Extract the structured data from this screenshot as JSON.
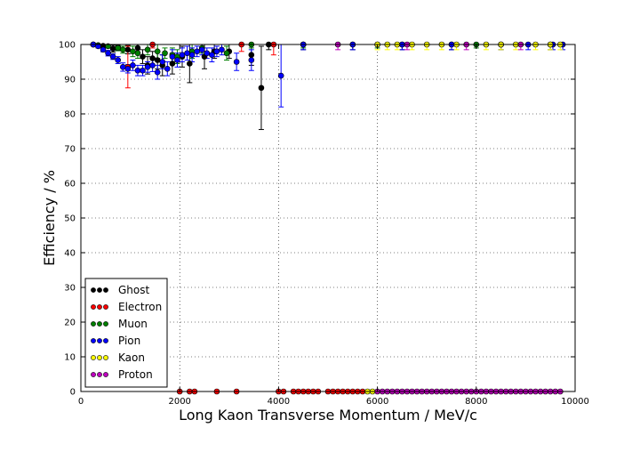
{
  "chart_data": {
    "type": "scatter",
    "title": "",
    "xlabel": "Long Kaon Transverse Momentum / MeV/c",
    "ylabel": "Efficiency / %",
    "xlim": [
      0,
      10000
    ],
    "ylim": [
      0,
      100
    ],
    "xticks": [
      0,
      2000,
      4000,
      6000,
      8000,
      10000
    ],
    "yticks": [
      0,
      10,
      20,
      30,
      40,
      50,
      60,
      70,
      80,
      90,
      100
    ],
    "grid": true,
    "error_bars": true,
    "legend_position": "lower-left",
    "series": [
      {
        "name": "Ghost",
        "color": "#000000",
        "points": [
          {
            "x": 250,
            "y": 100,
            "err": 0.3
          },
          {
            "x": 450,
            "y": 99.6,
            "err": 0.5
          },
          {
            "x": 650,
            "y": 98.8,
            "err": 1.0
          },
          {
            "x": 750,
            "y": 99.2,
            "err": 0.9
          },
          {
            "x": 950,
            "y": 98.5,
            "err": 1.2
          },
          {
            "x": 1150,
            "y": 99.0,
            "err": 1.2
          },
          {
            "x": 1250,
            "y": 96.5,
            "err": 2.0
          },
          {
            "x": 1350,
            "y": 94.0,
            "err": 2.5
          },
          {
            "x": 1450,
            "y": 96.0,
            "err": 2.0
          },
          {
            "x": 1550,
            "y": 95.5,
            "err": 2.5
          },
          {
            "x": 1650,
            "y": 94.0,
            "err": 3.0
          },
          {
            "x": 1850,
            "y": 94.5,
            "err": 3.0
          },
          {
            "x": 2050,
            "y": 96.5,
            "err": 3.0
          },
          {
            "x": 2200,
            "y": 94.5,
            "err": 5.5
          },
          {
            "x": 2500,
            "y": 96.5,
            "err": 3.5
          },
          {
            "x": 2700,
            "y": 98.0,
            "err": 2.0
          },
          {
            "x": 3000,
            "y": 98.0,
            "err": 2.0
          },
          {
            "x": 3450,
            "y": 97.0,
            "err": 3.0
          },
          {
            "x": 3650,
            "y": 87.5,
            "err": 12.0
          },
          {
            "x": 3800,
            "y": 100,
            "err": 1.5
          },
          {
            "x": 4500,
            "y": 100,
            "err": 1.5
          },
          {
            "x": 5500,
            "y": 100,
            "err": 1.5
          },
          {
            "x": 6500,
            "y": 100,
            "err": 1.5
          },
          {
            "x": 7500,
            "y": 100,
            "err": 1.5
          },
          {
            "x": 8500,
            "y": 100,
            "err": 1.5
          },
          {
            "x": 9500,
            "y": 100,
            "err": 1.5
          }
        ]
      },
      {
        "name": "Electron",
        "color": "#ff0000",
        "points": [
          {
            "x": 250,
            "y": 100,
            "err": 0.3
          },
          {
            "x": 950,
            "y": 93.5,
            "err": 6.0
          },
          {
            "x": 1450,
            "y": 100,
            "err": 1.0
          },
          {
            "x": 2000,
            "y": 0,
            "err": 0
          },
          {
            "x": 2200,
            "y": 0,
            "err": 0
          },
          {
            "x": 2300,
            "y": 0,
            "err": 0
          },
          {
            "x": 2750,
            "y": 0,
            "err": 0
          },
          {
            "x": 3150,
            "y": 0,
            "err": 0
          },
          {
            "x": 3250,
            "y": 100,
            "err": 2.0
          },
          {
            "x": 3900,
            "y": 100,
            "err": 3.0
          },
          {
            "x": 4000,
            "y": 0,
            "err": 0
          },
          {
            "x": 4100,
            "y": 0,
            "err": 0
          },
          {
            "x": 4300,
            "y": 0,
            "err": 0
          },
          {
            "x": 4400,
            "y": 0,
            "err": 0
          },
          {
            "x": 4500,
            "y": 0,
            "err": 0
          },
          {
            "x": 4600,
            "y": 0,
            "err": 0
          },
          {
            "x": 4700,
            "y": 0,
            "err": 0
          },
          {
            "x": 4800,
            "y": 0,
            "err": 0
          },
          {
            "x": 5000,
            "y": 0,
            "err": 0
          },
          {
            "x": 5100,
            "y": 0,
            "err": 0
          },
          {
            "x": 5200,
            "y": 0,
            "err": 0
          },
          {
            "x": 5300,
            "y": 0,
            "err": 0
          },
          {
            "x": 5400,
            "y": 0,
            "err": 0
          },
          {
            "x": 5500,
            "y": 0,
            "err": 0
          },
          {
            "x": 5600,
            "y": 0,
            "err": 0
          },
          {
            "x": 5700,
            "y": 0,
            "err": 0
          }
        ]
      },
      {
        "name": "Muon",
        "color": "#007f00",
        "points": [
          {
            "x": 350,
            "y": 99.8,
            "err": 0.4
          },
          {
            "x": 550,
            "y": 99.5,
            "err": 0.5
          },
          {
            "x": 750,
            "y": 99.0,
            "err": 0.8
          },
          {
            "x": 850,
            "y": 98.5,
            "err": 1.0
          },
          {
            "x": 1050,
            "y": 98.0,
            "err": 1.5
          },
          {
            "x": 1150,
            "y": 97.5,
            "err": 1.5
          },
          {
            "x": 1350,
            "y": 98.5,
            "err": 1.5
          },
          {
            "x": 1550,
            "y": 98.0,
            "err": 2.0
          },
          {
            "x": 1700,
            "y": 97.5,
            "err": 1.5
          },
          {
            "x": 1850,
            "y": 97.0,
            "err": 2.0
          },
          {
            "x": 1950,
            "y": 96.5,
            "err": 2.0
          },
          {
            "x": 2250,
            "y": 98.0,
            "err": 2.0
          },
          {
            "x": 2450,
            "y": 99.0,
            "err": 1.5
          },
          {
            "x": 2950,
            "y": 97.5,
            "err": 2.0
          },
          {
            "x": 3450,
            "y": 100,
            "err": 1.0
          },
          {
            "x": 4500,
            "y": 100,
            "err": 1.0
          },
          {
            "x": 6000,
            "y": 100,
            "err": 1.0
          },
          {
            "x": 8000,
            "y": 100,
            "err": 1.0
          }
        ]
      },
      {
        "name": "Pion",
        "color": "#0000ff",
        "points": [
          {
            "x": 250,
            "y": 100,
            "err": 0.3
          },
          {
            "x": 350,
            "y": 99.5,
            "err": 0.5
          },
          {
            "x": 450,
            "y": 98.5,
            "err": 0.6
          },
          {
            "x": 550,
            "y": 97.5,
            "err": 0.8
          },
          {
            "x": 650,
            "y": 96.5,
            "err": 0.8
          },
          {
            "x": 750,
            "y": 95.5,
            "err": 1.0
          },
          {
            "x": 850,
            "y": 93.5,
            "err": 1.2
          },
          {
            "x": 950,
            "y": 93.0,
            "err": 1.2
          },
          {
            "x": 1050,
            "y": 94.0,
            "err": 1.5
          },
          {
            "x": 1150,
            "y": 92.5,
            "err": 1.5
          },
          {
            "x": 1250,
            "y": 92.5,
            "err": 1.5
          },
          {
            "x": 1350,
            "y": 93.5,
            "err": 1.5
          },
          {
            "x": 1450,
            "y": 94.0,
            "err": 1.8
          },
          {
            "x": 1550,
            "y": 92.0,
            "err": 2.0
          },
          {
            "x": 1650,
            "y": 95.0,
            "err": 2.0
          },
          {
            "x": 1750,
            "y": 93.0,
            "err": 2.0
          },
          {
            "x": 1850,
            "y": 96.5,
            "err": 2.0
          },
          {
            "x": 1950,
            "y": 95.5,
            "err": 2.0
          },
          {
            "x": 2050,
            "y": 97.0,
            "err": 2.0
          },
          {
            "x": 2150,
            "y": 97.5,
            "err": 2.0
          },
          {
            "x": 2250,
            "y": 97.0,
            "err": 2.0
          },
          {
            "x": 2350,
            "y": 98.0,
            "err": 1.5
          },
          {
            "x": 2450,
            "y": 98.5,
            "err": 1.5
          },
          {
            "x": 2550,
            "y": 97.5,
            "err": 1.5
          },
          {
            "x": 2650,
            "y": 97.0,
            "err": 2.0
          },
          {
            "x": 2750,
            "y": 98.0,
            "err": 1.5
          },
          {
            "x": 2850,
            "y": 98.5,
            "err": 1.5
          },
          {
            "x": 3150,
            "y": 95.0,
            "err": 2.5
          },
          {
            "x": 3450,
            "y": 95.5,
            "err": 3.0
          },
          {
            "x": 4050,
            "y": 91.0,
            "err": 9.0
          },
          {
            "x": 4500,
            "y": 100,
            "err": 1.5
          },
          {
            "x": 5500,
            "y": 100,
            "err": 1.5
          },
          {
            "x": 6500,
            "y": 100,
            "err": 1.5
          },
          {
            "x": 7500,
            "y": 100,
            "err": 1.5
          },
          {
            "x": 8500,
            "y": 100,
            "err": 1.5
          },
          {
            "x": 9050,
            "y": 100,
            "err": 1.5
          },
          {
            "x": 9550,
            "y": 100,
            "err": 1.5
          },
          {
            "x": 9750,
            "y": 100,
            "err": 1.5
          }
        ]
      },
      {
        "name": "Kaon",
        "color": "#ffff00",
        "points": [
          {
            "x": 5800,
            "y": 0,
            "err": 0
          },
          {
            "x": 5900,
            "y": 0,
            "err": 0
          },
          {
            "x": 6000,
            "y": 100,
            "err": 1.5
          },
          {
            "x": 6200,
            "y": 100,
            "err": 1.5
          },
          {
            "x": 6400,
            "y": 100,
            "err": 1.5
          },
          {
            "x": 6700,
            "y": 100,
            "err": 1.5
          },
          {
            "x": 7000,
            "y": 100,
            "err": 1.5
          },
          {
            "x": 7300,
            "y": 100,
            "err": 1.5
          },
          {
            "x": 7600,
            "y": 100,
            "err": 1.5
          },
          {
            "x": 8200,
            "y": 100,
            "err": 1.5
          },
          {
            "x": 8500,
            "y": 100,
            "err": 1.5
          },
          {
            "x": 8800,
            "y": 100,
            "err": 1.5
          },
          {
            "x": 9200,
            "y": 100,
            "err": 1.5
          },
          {
            "x": 9500,
            "y": 100,
            "err": 1.5
          },
          {
            "x": 9700,
            "y": 100,
            "err": 1.5
          }
        ]
      },
      {
        "name": "Proton",
        "color": "#bf00bf",
        "points": [
          {
            "x": 6000,
            "y": 0,
            "err": 0
          },
          {
            "x": 6100,
            "y": 0,
            "err": 0
          },
          {
            "x": 6200,
            "y": 0,
            "err": 0
          },
          {
            "x": 6300,
            "y": 0,
            "err": 0
          },
          {
            "x": 6400,
            "y": 0,
            "err": 0
          },
          {
            "x": 6500,
            "y": 0,
            "err": 0
          },
          {
            "x": 6600,
            "y": 0,
            "err": 0
          },
          {
            "x": 6700,
            "y": 0,
            "err": 0
          },
          {
            "x": 6800,
            "y": 0,
            "err": 0
          },
          {
            "x": 6900,
            "y": 0,
            "err": 0
          },
          {
            "x": 7000,
            "y": 0,
            "err": 0
          },
          {
            "x": 7100,
            "y": 0,
            "err": 0
          },
          {
            "x": 7200,
            "y": 0,
            "err": 0
          },
          {
            "x": 7300,
            "y": 0,
            "err": 0
          },
          {
            "x": 7400,
            "y": 0,
            "err": 0
          },
          {
            "x": 7500,
            "y": 0,
            "err": 0
          },
          {
            "x": 7600,
            "y": 0,
            "err": 0
          },
          {
            "x": 7700,
            "y": 0,
            "err": 0
          },
          {
            "x": 7800,
            "y": 0,
            "err": 0
          },
          {
            "x": 7900,
            "y": 0,
            "err": 0
          },
          {
            "x": 8000,
            "y": 0,
            "err": 0
          },
          {
            "x": 8100,
            "y": 0,
            "err": 0
          },
          {
            "x": 8200,
            "y": 0,
            "err": 0
          },
          {
            "x": 8300,
            "y": 0,
            "err": 0
          },
          {
            "x": 8400,
            "y": 0,
            "err": 0
          },
          {
            "x": 8500,
            "y": 0,
            "err": 0
          },
          {
            "x": 8600,
            "y": 0,
            "err": 0
          },
          {
            "x": 8700,
            "y": 0,
            "err": 0
          },
          {
            "x": 8800,
            "y": 0,
            "err": 0
          },
          {
            "x": 8900,
            "y": 0,
            "err": 0
          },
          {
            "x": 9000,
            "y": 0,
            "err": 0
          },
          {
            "x": 9100,
            "y": 0,
            "err": 0
          },
          {
            "x": 9200,
            "y": 0,
            "err": 0
          },
          {
            "x": 9300,
            "y": 0,
            "err": 0
          },
          {
            "x": 9400,
            "y": 0,
            "err": 0
          },
          {
            "x": 9500,
            "y": 0,
            "err": 0
          },
          {
            "x": 9600,
            "y": 0,
            "err": 0
          },
          {
            "x": 9700,
            "y": 0,
            "err": 0
          },
          {
            "x": 5200,
            "y": 100,
            "err": 1.5
          },
          {
            "x": 6600,
            "y": 100,
            "err": 1.5
          },
          {
            "x": 7800,
            "y": 100,
            "err": 1.5
          },
          {
            "x": 8900,
            "y": 100,
            "err": 1.5
          }
        ]
      }
    ]
  }
}
